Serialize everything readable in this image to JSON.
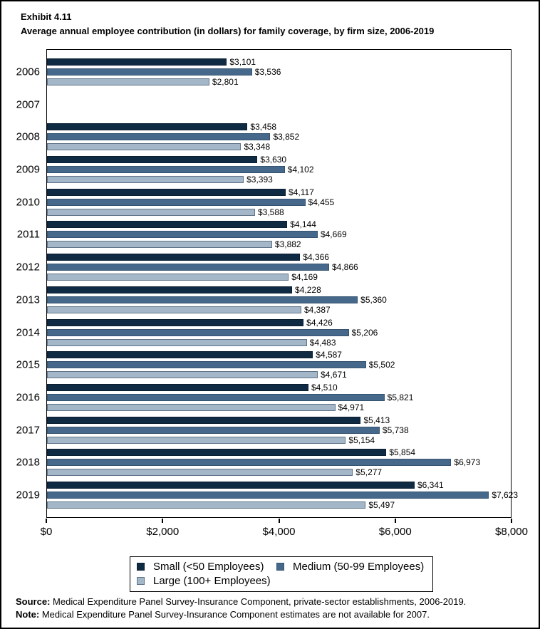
{
  "header": {
    "exhibit": "Exhibit 4.11",
    "title": "Average annual employee contribution (in dollars) for family coverage, by firm size, 2006-2019"
  },
  "chart_data": {
    "type": "bar",
    "orientation": "horizontal",
    "title": "Exhibit 4.11",
    "subtitle": "Average annual employee contribution (in dollars) for family coverage, by firm size, 2006-2019",
    "categories": [
      "2006",
      "2007",
      "2008",
      "2009",
      "2010",
      "2011",
      "2012",
      "2013",
      "2014",
      "2015",
      "2016",
      "2017",
      "2018",
      "2019"
    ],
    "series": [
      {
        "name": "Small (<50 Employees)",
        "color": "#0f2a43",
        "border_color": "#0a1e31",
        "values": [
          3101,
          null,
          3458,
          3630,
          4117,
          4144,
          4366,
          4228,
          4426,
          4587,
          4510,
          5413,
          5854,
          6341
        ]
      },
      {
        "name": "Medium (50-99 Employees)",
        "color": "#45688b",
        "border_color": "#35536f",
        "values": [
          3536,
          null,
          3852,
          4102,
          4455,
          4669,
          4866,
          5360,
          5206,
          5502,
          5821,
          5738,
          6973,
          7623
        ]
      },
      {
        "name": "Large (100+ Employees)",
        "color": "#a4b7c9",
        "border_color": "#5f7388",
        "values": [
          2801,
          null,
          3348,
          3393,
          3588,
          3882,
          4169,
          4387,
          4483,
          4671,
          4971,
          5154,
          5277,
          5497
        ]
      }
    ],
    "xlim": [
      0,
      8000
    ],
    "x_ticks": [
      {
        "value": 0,
        "label": "$0"
      },
      {
        "value": 2000,
        "label": "$2,000"
      },
      {
        "value": 4000,
        "label": "$4,000"
      },
      {
        "value": 6000,
        "label": "$6,000"
      },
      {
        "value": 8000,
        "label": "$8,000"
      }
    ],
    "value_prefix": "$",
    "grid": false,
    "legend_position": "bottom",
    "note": "No data shown for 2007"
  },
  "footer": {
    "source_label": "Source:",
    "source_text": "Medical Expenditure Panel Survey-Insurance Component, private-sector establishments, 2006-2019.",
    "note_label": "Note:",
    "note_text": "Medical Expenditure Panel Survey-Insurance Component estimates are not available for 2007."
  }
}
